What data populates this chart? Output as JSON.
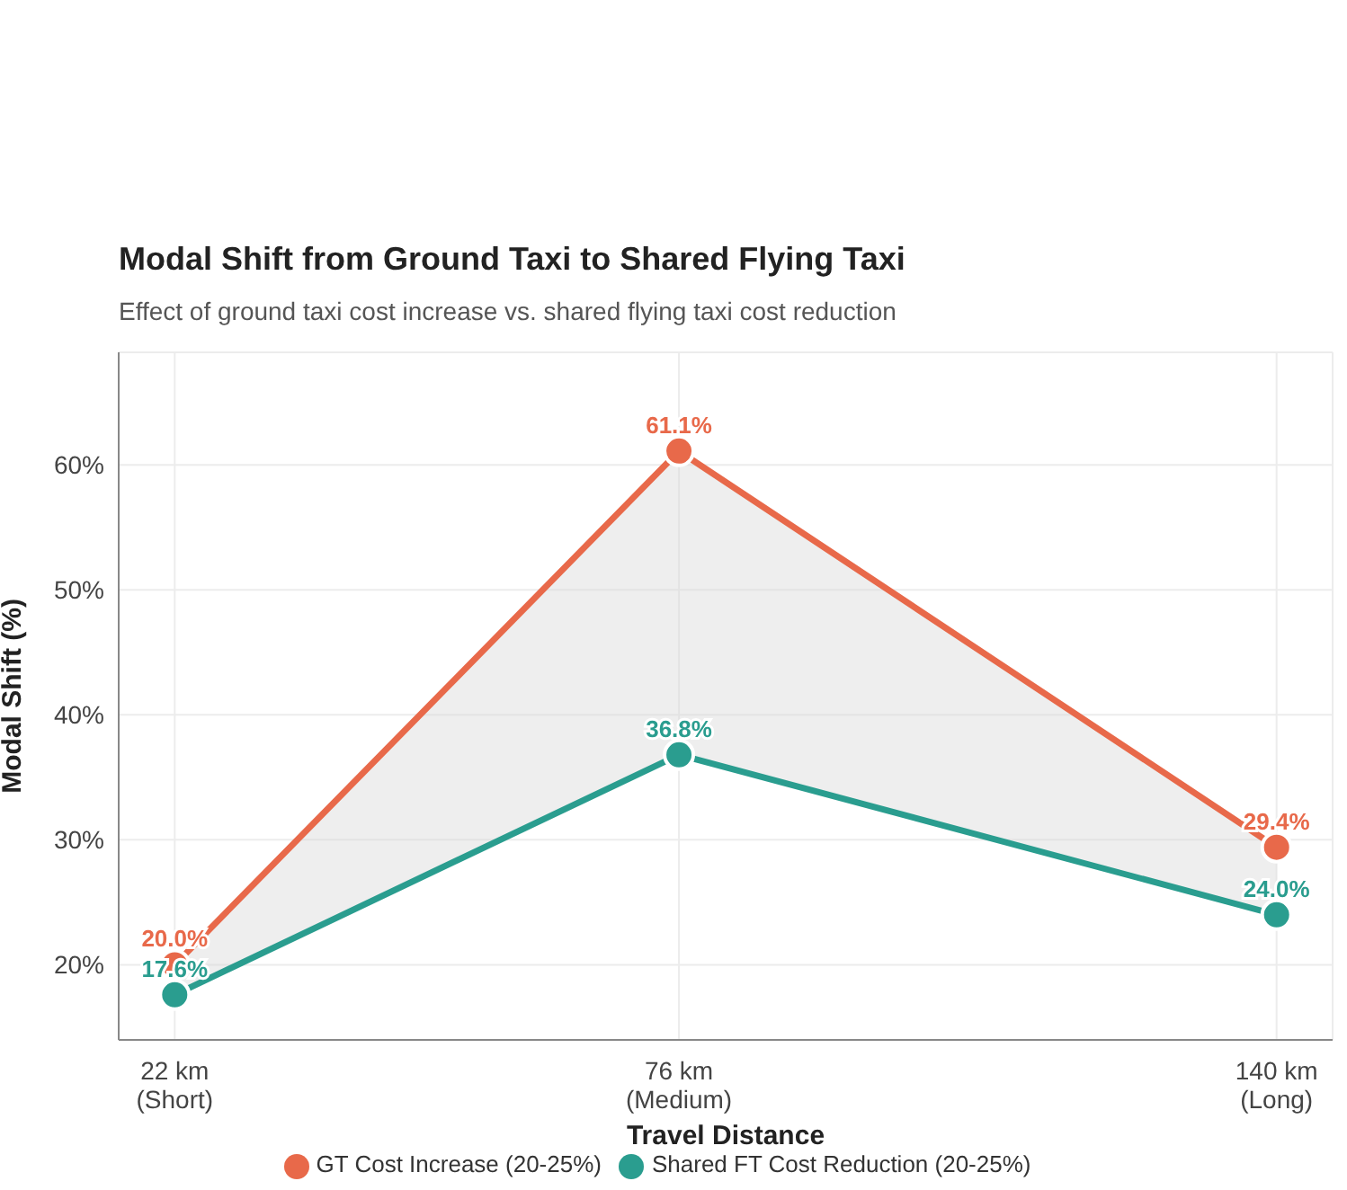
{
  "chart_data": {
    "type": "line",
    "title": "Modal Shift from Ground Taxi to Shared Flying Taxi",
    "subtitle": "Effect of ground taxi cost increase vs. shared flying taxi cost reduction",
    "xlabel": "Travel Distance",
    "ylabel": "Modal Shift (%)",
    "x": [
      22,
      76,
      140
    ],
    "xlim": [
      16,
      146
    ],
    "xticks": [
      {
        "value": 22,
        "label": "22 km\n(Short)"
      },
      {
        "value": 76,
        "label": "76 km\n(Medium)"
      },
      {
        "value": 140,
        "label": "140 km\n(Long)"
      }
    ],
    "ylim": [
      14,
      69
    ],
    "yticks": [
      {
        "value": 20,
        "label": "20%"
      },
      {
        "value": 30,
        "label": "30%"
      },
      {
        "value": 40,
        "label": "40%"
      },
      {
        "value": 50,
        "label": "50%"
      },
      {
        "value": 60,
        "label": "60%"
      }
    ],
    "series": [
      {
        "name": "GT Cost Increase (20-25%)",
        "color": "#e8694a",
        "values": [
          20.0,
          61.1,
          29.4
        ],
        "value_labels": [
          "20.0%",
          "61.1%",
          "29.4%"
        ],
        "lower": [
          17.6,
          36.8,
          24.0
        ],
        "upper": [
          20.0,
          61.1,
          29.4
        ]
      },
      {
        "name": "Shared FT Cost Reduction (20-25%)",
        "color": "#2a9d8f",
        "values": [
          17.6,
          36.8,
          24.0
        ],
        "value_labels": [
          "17.6%",
          "36.8%",
          "24.0%"
        ]
      }
    ],
    "grid": true,
    "legend": "bottom",
    "marker": "circle",
    "line_style": "solid"
  }
}
